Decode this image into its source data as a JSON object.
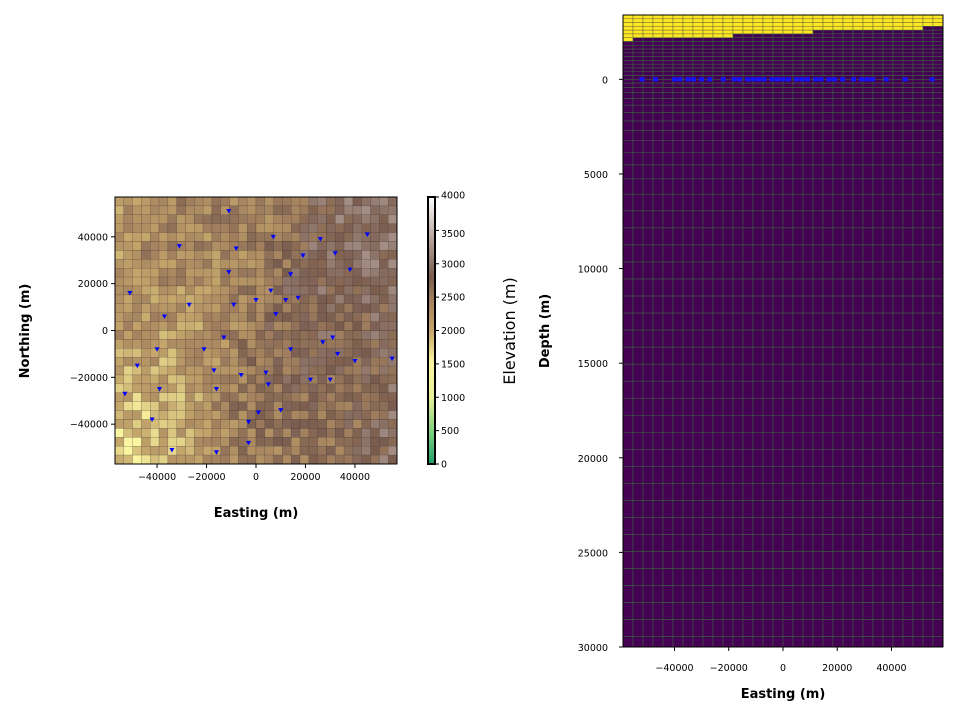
{
  "chart_data": [
    {
      "type": "heatmap",
      "title": "",
      "xlabel": "Easting (m)",
      "ylabel": "Northing (m)",
      "xlim": [
        -57000,
        57000
      ],
      "ylim": [
        -57000,
        57000
      ],
      "xticks": [
        -40000,
        -20000,
        0,
        20000,
        40000
      ],
      "xtick_labels": [
        "−40000",
        "−20000",
        "0",
        "20000",
        "40000"
      ],
      "yticks": [
        40000,
        20000,
        0,
        -20000,
        -40000
      ],
      "ytick_labels": [
        "40000",
        "20000",
        "0",
        "−20000",
        "−40000"
      ],
      "grid": true,
      "grid_cells": [
        32,
        30
      ],
      "colormap": "terrain",
      "colorbar": {
        "label": "Elevation (m)",
        "range": [
          0,
          4000
        ],
        "ticks": [
          0,
          500,
          1000,
          1500,
          2000,
          2500,
          3000,
          3500,
          4000
        ],
        "tick_labels": [
          "0",
          "500",
          "1000",
          "1500",
          "2000",
          "2500",
          "3000",
          "3500",
          "4000"
        ]
      },
      "field_range": [
        1400,
        3200
      ],
      "stations_marker_color": "#0000ff",
      "stations": [
        [
          -11000,
          51000
        ],
        [
          7000,
          40000
        ],
        [
          26000,
          39000
        ],
        [
          45000,
          41000
        ],
        [
          -31000,
          36000
        ],
        [
          -8000,
          35000
        ],
        [
          19000,
          32000
        ],
        [
          32000,
          33000
        ],
        [
          -11000,
          25000
        ],
        [
          14000,
          24000
        ],
        [
          38000,
          26000
        ],
        [
          -51000,
          16000
        ],
        [
          6000,
          17000
        ],
        [
          -27000,
          11000
        ],
        [
          -9000,
          11000
        ],
        [
          0,
          13000
        ],
        [
          12000,
          13000
        ],
        [
          17000,
          14000
        ],
        [
          -37000,
          6000
        ],
        [
          8000,
          7000
        ],
        [
          -13000,
          -3000
        ],
        [
          27000,
          -5000
        ],
        [
          31000,
          -3000
        ],
        [
          -40000,
          -8000
        ],
        [
          -21000,
          -8000
        ],
        [
          14000,
          -8000
        ],
        [
          33000,
          -10000
        ],
        [
          40000,
          -13000
        ],
        [
          55000,
          -12000
        ],
        [
          -48000,
          -15000
        ],
        [
          -17000,
          -17000
        ],
        [
          -6000,
          -19000
        ],
        [
          4000,
          -18000
        ],
        [
          5000,
          -23000
        ],
        [
          22000,
          -21000
        ],
        [
          30000,
          -21000
        ],
        [
          -39000,
          -25000
        ],
        [
          -16000,
          -25000
        ],
        [
          -53000,
          -27000
        ],
        [
          10000,
          -34000
        ],
        [
          1000,
          -35000
        ],
        [
          -42000,
          -38000
        ],
        [
          -3000,
          -39000
        ],
        [
          -34000,
          -51000
        ],
        [
          -3000,
          -48000
        ],
        [
          -16000,
          -52000
        ]
      ]
    },
    {
      "type": "heatmap",
      "title": "",
      "xlabel": "Easting (m)",
      "ylabel": "Depth (m)",
      "xlim": [
        -59000,
        59000
      ],
      "ylim": [
        30000,
        -3400
      ],
      "xticks": [
        -40000,
        -20000,
        0,
        20000,
        40000
      ],
      "xtick_labels": [
        "−40000",
        "−20000",
        "0",
        "20000",
        "40000"
      ],
      "yticks": [
        0,
        5000,
        10000,
        15000,
        20000,
        25000,
        30000
      ],
      "ytick_labels": [
        "0",
        "5000",
        "10000",
        "15000",
        "20000",
        "25000",
        "30000"
      ],
      "grid": true,
      "columns": 32,
      "subsurface_color": "#440154",
      "air_color": "#fde725",
      "surface_depths": [
        -1850,
        -2050,
        -2150,
        -2150,
        -2050,
        -2050,
        -2100,
        -2100,
        -2150,
        -2150,
        -2200,
        -2250,
        -2250,
        -2300,
        -2300,
        -2350,
        -2400,
        -2350,
        -2400,
        -2450,
        -2450,
        -2450,
        -2500,
        -2550,
        -2550,
        -2600,
        -2600,
        -2550,
        -2500,
        -2600,
        -2700,
        -2700
      ],
      "receiver_depth": 0,
      "receiver_eastings": [
        -52000,
        -47000,
        -40000,
        -38000,
        -35000,
        -33000,
        -30000,
        -27000,
        -22000,
        -18000,
        -16000,
        -13000,
        -11000,
        -9000,
        -7000,
        -4000,
        -2000,
        0,
        2000,
        5000,
        7000,
        9000,
        12000,
        14000,
        17000,
        19000,
        22000,
        26000,
        29000,
        31000,
        33000,
        38000,
        45000,
        55000
      ]
    }
  ]
}
